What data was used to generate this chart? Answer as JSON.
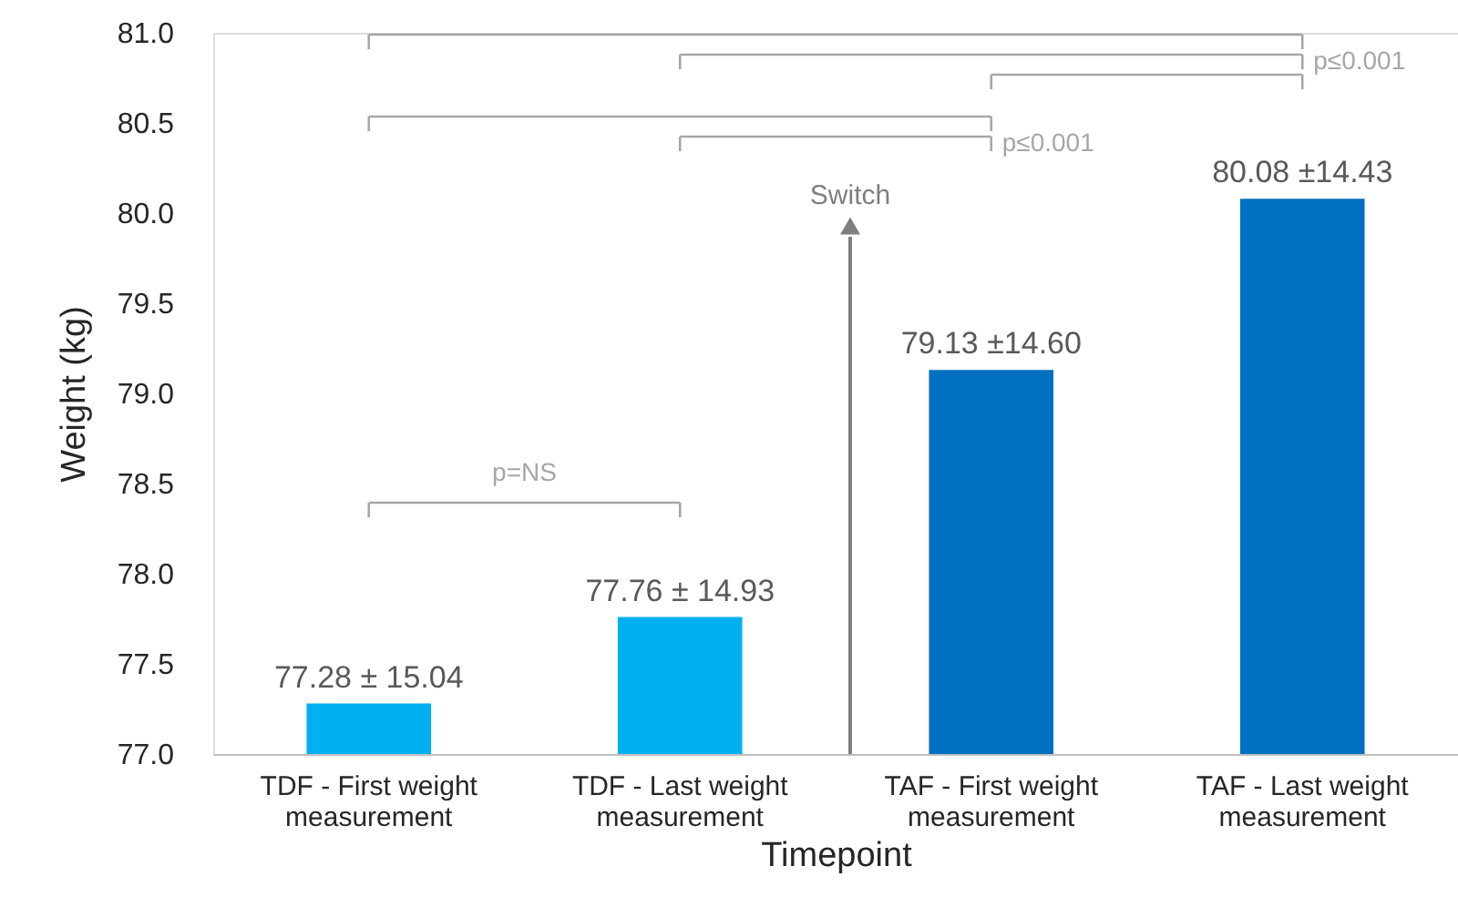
{
  "chart_data": {
    "type": "bar",
    "xlabel": "Timepoint",
    "ylabel": "Weight (kg)",
    "categories": [
      "TDF - First weight measurement",
      "TDF - Last weight measurement",
      "TAF - First weight measurement",
      "TAF - Last weight measurement"
    ],
    "values": [
      77.28,
      77.76,
      79.13,
      80.08
    ],
    "colors": [
      "#00b0f0",
      "#00b0f0",
      "#0070c0",
      "#0070c0"
    ],
    "value_labels": [
      "77.28 ± 15.04",
      "77.76 ± 14.93",
      "79.13 ±14.60",
      "80.08 ±14.43"
    ],
    "ylim": [
      77,
      81
    ],
    "yticks": [
      {
        "value": 77,
        "label": "77.0"
      },
      {
        "value": 77.5,
        "label": "77.5"
      },
      {
        "value": 78,
        "label": "78.0"
      },
      {
        "value": 78.5,
        "label": "78.5"
      },
      {
        "value": 79,
        "label": "79.0"
      },
      {
        "value": 79.5,
        "label": "79.5"
      },
      {
        "value": 80,
        "label": "80.0"
      },
      {
        "value": 80.5,
        "label": "80.5"
      },
      {
        "value": 81,
        "label": "81.0"
      }
    ],
    "grid": false,
    "annotations": [
      "p=NS",
      "p≤0.001",
      "p≤0.001",
      "Switch"
    ]
  }
}
